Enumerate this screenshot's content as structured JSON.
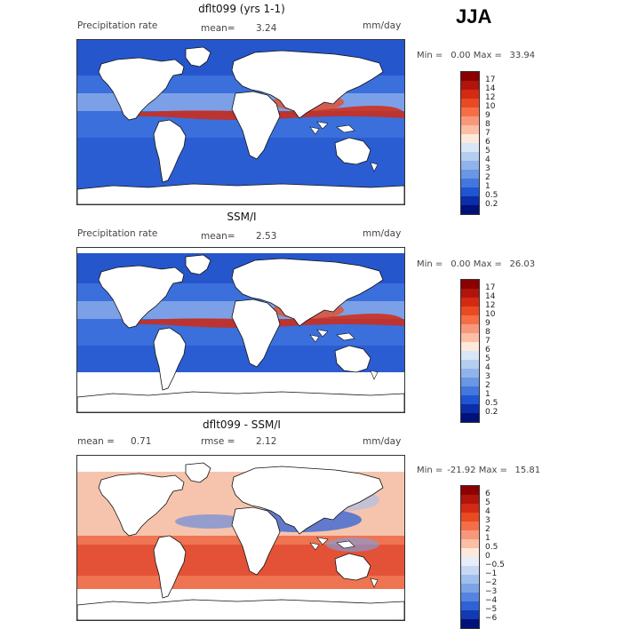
{
  "season": "JJA",
  "panels": [
    {
      "title": "dflt099 (yrs 1-1)",
      "left_label": "Precipitation rate",
      "center_label": "mean=",
      "center_value": "3.24",
      "units": "mm/day",
      "min_label": "Min =",
      "min_value": "0.00",
      "max_label": "Max =",
      "max_value": "33.94",
      "colorbar": "precip",
      "type": "model"
    },
    {
      "title": "SSM/I",
      "left_label": "Precipitation rate",
      "center_label": "mean=",
      "center_value": "2.53",
      "units": "mm/day",
      "min_label": "Min =",
      "min_value": "0.00",
      "max_label": "Max =",
      "max_value": "26.03",
      "colorbar": "precip",
      "type": "obs"
    },
    {
      "title": "dflt099 - SSM/I",
      "left_label": "mean =",
      "left_value": "0.71",
      "center_label": "rmse =",
      "center_value": "2.12",
      "units": "mm/day",
      "min_label": "Min =",
      "min_value": "-21.92",
      "max_label": "Max =",
      "max_value": "15.81",
      "colorbar": "diff",
      "type": "diff"
    }
  ],
  "colorbars": {
    "precip": {
      "labels": [
        "17",
        "14",
        "12",
        "10",
        "9",
        "8",
        "7",
        "6",
        "5",
        "4",
        "3",
        "2",
        "1",
        "0.5",
        "0.2"
      ],
      "colors": [
        "#8b0000",
        "#b0150c",
        "#d42a14",
        "#ea4a22",
        "#f46f47",
        "#f9977a",
        "#fcbfa6",
        "#fde9dc",
        "#d8e6f7",
        "#b4cef0",
        "#8fb3ea",
        "#6a97e3",
        "#4477dd",
        "#2055d2",
        "#0b2ea8",
        "#00127a"
      ]
    },
    "diff": {
      "labels": [
        "6",
        "5",
        "4",
        "3",
        "2",
        "1",
        "0.5",
        "0",
        "−0.5",
        "−1",
        "−2",
        "−3",
        "−4",
        "−5",
        "−6"
      ],
      "colors": [
        "#8b0000",
        "#b0150c",
        "#d42a14",
        "#ea4a22",
        "#f46f47",
        "#f9977a",
        "#fcbfa6",
        "#fde9dc",
        "#e7eef9",
        "#c6d8f3",
        "#a1bfec",
        "#7ca3e6",
        "#5484df",
        "#2f62d5",
        "#123bb3",
        "#00127a"
      ]
    }
  }
}
